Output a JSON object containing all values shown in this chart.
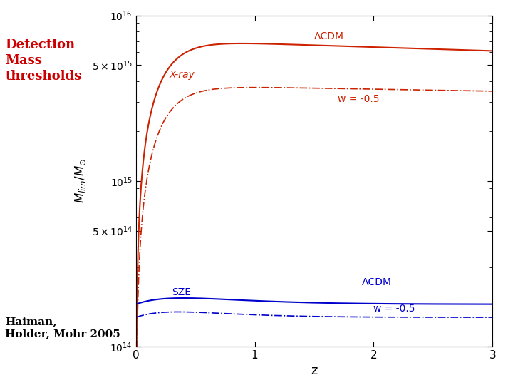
{
  "title_text": "Detection\nMass\nthresholds",
  "title_color": "#cc0000",
  "citation": "Haiman,\nHolder, Mohr 2005",
  "ylabel": "$M_{lim}/M_{\\odot}$",
  "xlabel": "z",
  "xray_label": "X-ray",
  "sze_label": "SZE",
  "lcdm_label": "ΛCDM",
  "w_label": "w = -0.5",
  "background_color": "#ffffff",
  "red_color": "#cc2200",
  "blue_color": "#0000cc",
  "xlim": [
    0,
    3
  ],
  "ylim_log": [
    100000000000000.0,
    1e+16
  ],
  "yticks": [
    100000000000000.0,
    500000000000000.0,
    1000000000000000.0,
    5000000000000000.0,
    1e+16
  ],
  "ytick_labels": [
    "$10^{14}$",
    "$5\\times10^{14}$",
    "$10^{15}$",
    "$5\\times10^{15}$",
    "$10^{16}$"
  ],
  "xticks": [
    0,
    1,
    2,
    3
  ]
}
